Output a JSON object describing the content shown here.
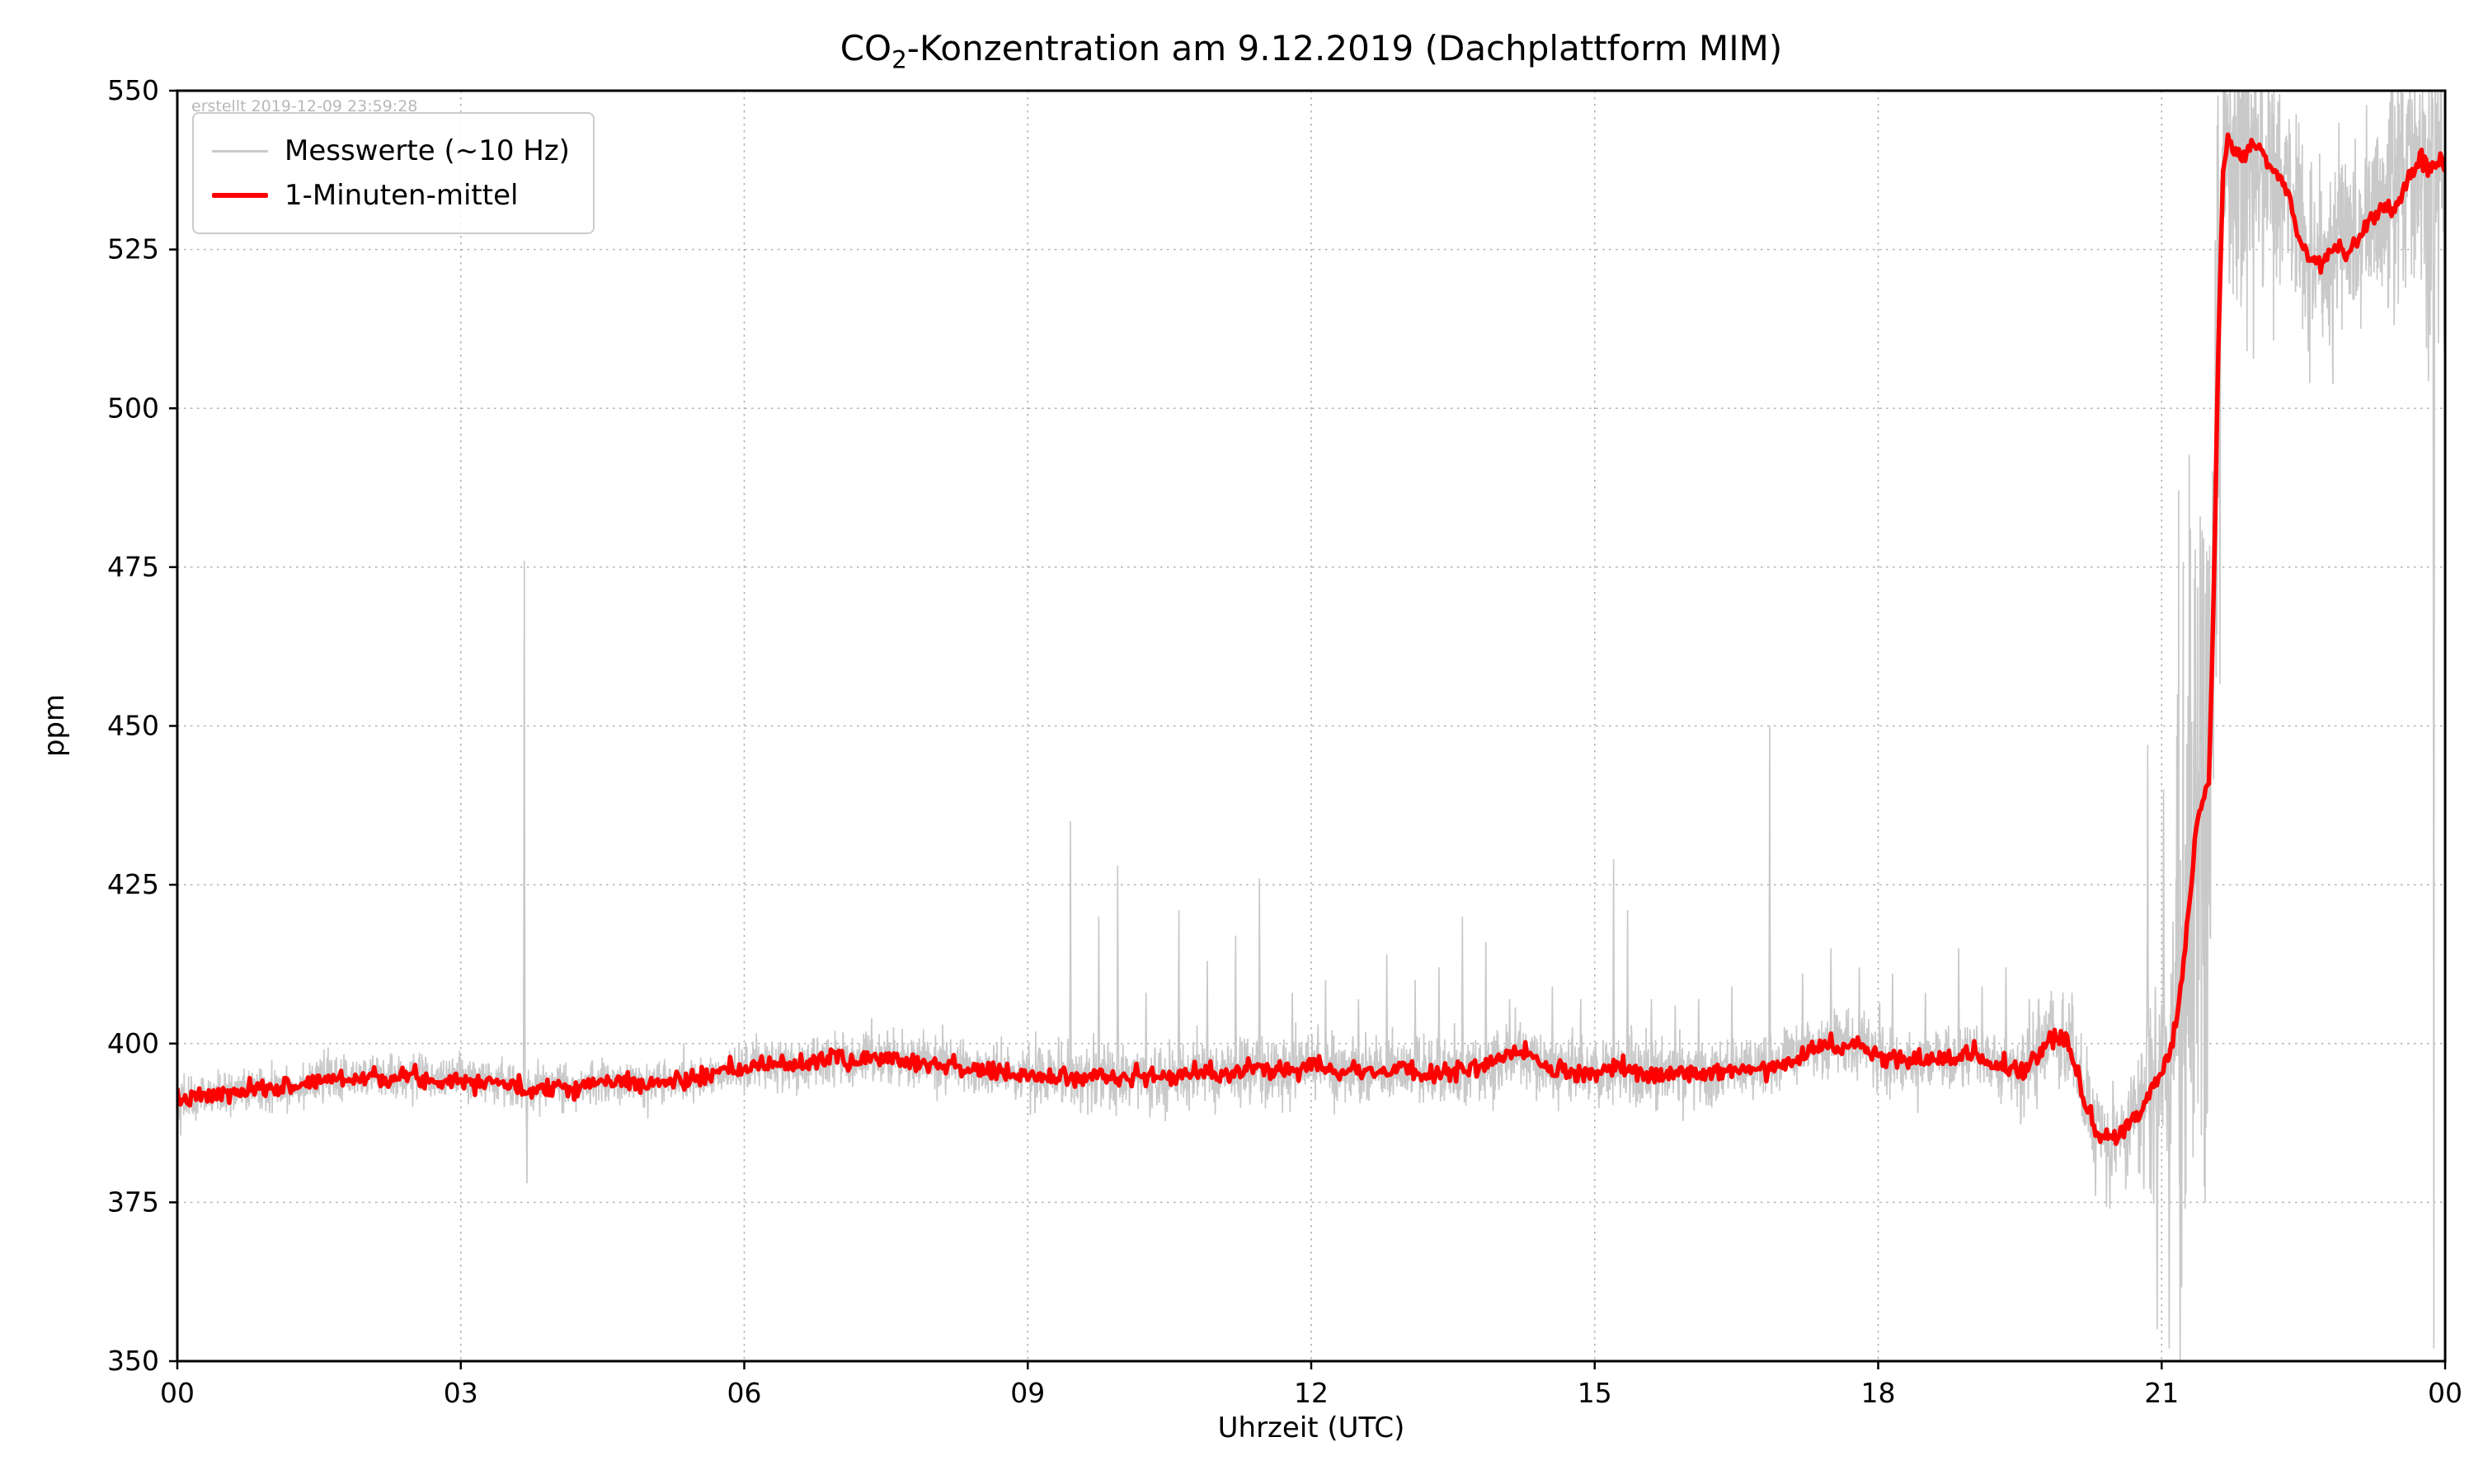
{
  "chart_data": {
    "type": "line",
    "title_parts": {
      "prefix": "CO",
      "sub": "2",
      "rest": "-Konzentration am 9.12.2019 (Dachplattform MIM)"
    },
    "created_stamp": "erstellt 2019-12-09 23:59:28",
    "xlabel": "Uhrzeit (UTC)",
    "ylabel": "ppm",
    "xlim": [
      0,
      24
    ],
    "ylim": [
      350,
      550
    ],
    "grid": {
      "on": true,
      "style": "dotted",
      "color": "#b0b0b0"
    },
    "x_ticks": {
      "values": [
        0,
        3,
        6,
        9,
        12,
        15,
        18,
        21,
        24
      ],
      "labels": [
        "00",
        "03",
        "06",
        "09",
        "12",
        "15",
        "18",
        "21",
        "00"
      ]
    },
    "y_ticks": {
      "values": [
        350,
        375,
        400,
        425,
        450,
        475,
        500,
        525,
        550
      ],
      "labels": [
        "350",
        "375",
        "400",
        "425",
        "450",
        "475",
        "500",
        "525",
        "550"
      ]
    },
    "legend": {
      "position": "upper left",
      "entries": [
        {
          "label": "Messwerte (~10 Hz)",
          "color": "#c9c9c9",
          "line_width": 3
        },
        {
          "label": "1-Minuten-mittel",
          "color": "#ff0000",
          "line_width": 6
        }
      ]
    },
    "series": {
      "mean_1min": {
        "name": "1-Minuten-mittel",
        "color": "#ff0000",
        "stroke_width": 5.5,
        "jitter": {
          "std": 0.7,
          "step_minutes": 1,
          "seed": 7
        },
        "points": [
          [
            0.0,
            391
          ],
          [
            0.2,
            391.5
          ],
          [
            0.5,
            392
          ],
          [
            0.8,
            392.5
          ],
          [
            1.0,
            393
          ],
          [
            1.3,
            393.5
          ],
          [
            1.6,
            394.5
          ],
          [
            1.9,
            394.5
          ],
          [
            2.1,
            395
          ],
          [
            2.3,
            394.5
          ],
          [
            2.5,
            395
          ],
          [
            2.7,
            394
          ],
          [
            2.9,
            394.5
          ],
          [
            3.1,
            394
          ],
          [
            3.3,
            394.5
          ],
          [
            3.5,
            393.5
          ],
          [
            3.65,
            392.5
          ],
          [
            3.8,
            393
          ],
          [
            4.0,
            393.5
          ],
          [
            4.2,
            393
          ],
          [
            4.5,
            394
          ],
          [
            4.8,
            394
          ],
          [
            5.0,
            393.5
          ],
          [
            5.2,
            394
          ],
          [
            5.5,
            394.5
          ],
          [
            5.8,
            395.5
          ],
          [
            6.0,
            396
          ],
          [
            6.2,
            396.5
          ],
          [
            6.4,
            397
          ],
          [
            6.6,
            396.5
          ],
          [
            6.8,
            397.5
          ],
          [
            7.0,
            398
          ],
          [
            7.1,
            396.5
          ],
          [
            7.25,
            398
          ],
          [
            7.4,
            397.5
          ],
          [
            7.6,
            398
          ],
          [
            7.8,
            397
          ],
          [
            8.0,
            397
          ],
          [
            8.2,
            396.5
          ],
          [
            8.4,
            396
          ],
          [
            8.6,
            395.5
          ],
          [
            8.8,
            395
          ],
          [
            9.0,
            395
          ],
          [
            9.2,
            394.5
          ],
          [
            9.4,
            395
          ],
          [
            9.6,
            394.5
          ],
          [
            9.8,
            395
          ],
          [
            10.0,
            394.5
          ],
          [
            10.2,
            395
          ],
          [
            10.4,
            394.5
          ],
          [
            10.6,
            395
          ],
          [
            10.8,
            395.5
          ],
          [
            11.0,
            395
          ],
          [
            11.2,
            395.5
          ],
          [
            11.4,
            396
          ],
          [
            11.6,
            395.5
          ],
          [
            11.8,
            396.5
          ],
          [
            12.0,
            397
          ],
          [
            12.2,
            396
          ],
          [
            12.4,
            395.5
          ],
          [
            12.6,
            396
          ],
          [
            12.8,
            395.5
          ],
          [
            13.0,
            396
          ],
          [
            13.2,
            395
          ],
          [
            13.4,
            395.5
          ],
          [
            13.6,
            396
          ],
          [
            13.8,
            396.5
          ],
          [
            14.0,
            397
          ],
          [
            14.2,
            399
          ],
          [
            14.35,
            397.5
          ],
          [
            14.5,
            396
          ],
          [
            14.7,
            395.5
          ],
          [
            14.9,
            395
          ],
          [
            15.1,
            395.5
          ],
          [
            15.3,
            396
          ],
          [
            15.5,
            395.5
          ],
          [
            15.7,
            395
          ],
          [
            15.9,
            395.5
          ],
          [
            16.1,
            395
          ],
          [
            16.3,
            395.5
          ],
          [
            16.5,
            396
          ],
          [
            16.7,
            396
          ],
          [
            16.9,
            396.5
          ],
          [
            17.1,
            397.5
          ],
          [
            17.3,
            399.5
          ],
          [
            17.5,
            400
          ],
          [
            17.65,
            399
          ],
          [
            17.8,
            399.5
          ],
          [
            18.0,
            398
          ],
          [
            18.2,
            397.5
          ],
          [
            18.4,
            397
          ],
          [
            18.6,
            397.5
          ],
          [
            18.8,
            398
          ],
          [
            19.0,
            398.5
          ],
          [
            19.2,
            397
          ],
          [
            19.4,
            396
          ],
          [
            19.55,
            395.5
          ],
          [
            19.7,
            399
          ],
          [
            19.85,
            401
          ],
          [
            20.0,
            400
          ],
          [
            20.1,
            396
          ],
          [
            20.2,
            390
          ],
          [
            20.35,
            385.5
          ],
          [
            20.5,
            385
          ],
          [
            20.6,
            386.5
          ],
          [
            20.75,
            389
          ],
          [
            20.9,
            393
          ],
          [
            21.0,
            396
          ],
          [
            21.1,
            399
          ],
          [
            21.2,
            408
          ],
          [
            21.3,
            423
          ],
          [
            21.35,
            432
          ],
          [
            21.4,
            437
          ],
          [
            21.45,
            439
          ],
          [
            21.5,
            441
          ],
          [
            21.55,
            470
          ],
          [
            21.6,
            510
          ],
          [
            21.65,
            537
          ],
          [
            21.7,
            543
          ],
          [
            21.75,
            541
          ],
          [
            21.85,
            539
          ],
          [
            21.95,
            542
          ],
          [
            22.05,
            540
          ],
          [
            22.15,
            538
          ],
          [
            22.25,
            537
          ],
          [
            22.35,
            533
          ],
          [
            22.45,
            527
          ],
          [
            22.55,
            524
          ],
          [
            22.65,
            523
          ],
          [
            22.75,
            524
          ],
          [
            22.85,
            526
          ],
          [
            22.95,
            524
          ],
          [
            23.05,
            526
          ],
          [
            23.15,
            529
          ],
          [
            23.25,
            530
          ],
          [
            23.35,
            532
          ],
          [
            23.45,
            531
          ],
          [
            23.55,
            534
          ],
          [
            23.65,
            537
          ],
          [
            23.75,
            540
          ],
          [
            23.85,
            538
          ],
          [
            23.95,
            539
          ],
          [
            24.0,
            538
          ]
        ]
      },
      "raw_10hz": {
        "name": "Messwerte (~10 Hz)",
        "color": "#c9c9c9",
        "stroke_width": 1.7,
        "render": {
          "samples": 6000,
          "seed": 42,
          "noise_regions": [
            {
              "from": 0,
              "to": 6,
              "std": 1.7
            },
            {
              "from": 6,
              "to": 9,
              "std": 2.0
            },
            {
              "from": 9,
              "to": 19.5,
              "std": 2.5
            },
            {
              "from": 19.5,
              "to": 20.75,
              "std": 3.5
            },
            {
              "from": 20.75,
              "to": 21.15,
              "std": 7
            },
            {
              "from": 21.15,
              "to": 21.62,
              "std": 30
            },
            {
              "from": 21.62,
              "to": 22.1,
              "std": 13
            },
            {
              "from": 22.1,
              "to": 23.3,
              "std": 8
            },
            {
              "from": 23.3,
              "to": 23.8,
              "std": 9
            },
            {
              "from": 23.8,
              "to": 24.001,
              "std": 16
            }
          ],
          "spikes": [
            [
              3.67,
              476
            ],
            [
              3.7,
              378
            ],
            [
              7.35,
              404
            ],
            [
              8.1,
              403
            ],
            [
              9.45,
              435
            ],
            [
              9.75,
              420
            ],
            [
              9.95,
              428
            ],
            [
              10.25,
              408
            ],
            [
              10.6,
              421
            ],
            [
              10.9,
              413
            ],
            [
              11.2,
              417
            ],
            [
              11.45,
              426
            ],
            [
              11.8,
              408
            ],
            [
              12.15,
              410
            ],
            [
              12.5,
              407
            ],
            [
              12.8,
              414
            ],
            [
              13.1,
              410
            ],
            [
              13.35,
              412
            ],
            [
              13.6,
              420
            ],
            [
              13.85,
              416
            ],
            [
              14.1,
              407
            ],
            [
              14.55,
              409
            ],
            [
              14.85,
              407
            ],
            [
              15.2,
              429
            ],
            [
              15.35,
              421
            ],
            [
              15.6,
              407
            ],
            [
              15.85,
              406
            ],
            [
              16.1,
              407
            ],
            [
              16.45,
              409
            ],
            [
              16.85,
              450
            ],
            [
              17.2,
              411
            ],
            [
              17.5,
              415
            ],
            [
              17.8,
              412
            ],
            [
              18.15,
              411
            ],
            [
              18.5,
              408
            ],
            [
              18.85,
              415
            ],
            [
              19.1,
              409
            ],
            [
              19.35,
              412
            ],
            [
              19.6,
              407
            ],
            [
              20.05,
              408
            ],
            [
              20.3,
              376
            ],
            [
              20.45,
              374
            ],
            [
              20.62,
              377
            ],
            [
              20.85,
              447
            ],
            [
              20.95,
              355
            ],
            [
              21.02,
              440
            ],
            [
              21.08,
              352
            ],
            [
              23.88,
              352
            ],
            [
              23.91,
              548
            ]
          ]
        }
      }
    },
    "layout": {
      "plot_left": 215,
      "plot_top": 110,
      "plot_right": 2965,
      "plot_bottom": 1651
    }
  }
}
